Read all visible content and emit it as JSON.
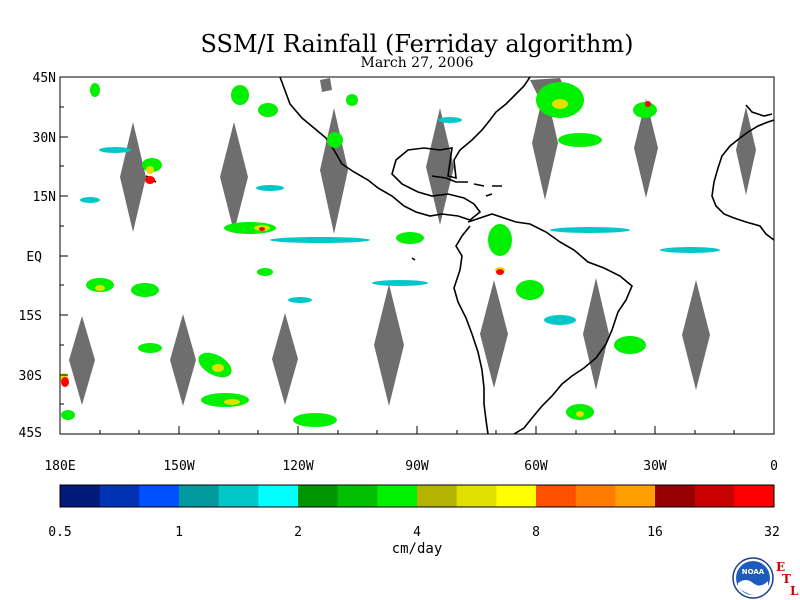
{
  "title": "SSM/I Rainfall (Ferriday algorithm)",
  "subtitle": "March 27, 2006",
  "lat_labels": [
    "45N",
    "30N",
    "15N",
    "EQ",
    "15S",
    "30S",
    "45S"
  ],
  "lon_labels": [
    "180E",
    "150W",
    "120W",
    "90W",
    "60W",
    "30W",
    "0"
  ],
  "colorbar": {
    "colors": [
      "#001a7a",
      "#0033b3",
      "#0050ff",
      "#00999e",
      "#00c8c8",
      "#00ffff",
      "#009400",
      "#00c000",
      "#00f000",
      "#b4b400",
      "#e0e000",
      "#ffff00",
      "#ff5000",
      "#ff7c00",
      "#ffa000",
      "#960000",
      "#c80000",
      "#ff0000"
    ],
    "tick_labels": [
      "0.5",
      "1",
      "2",
      "4",
      "8",
      "16",
      "32"
    ],
    "units": "cm/day"
  },
  "logo": {
    "name": "noaa-logo",
    "text": "NOAA"
  },
  "corner_mark": [
    "E",
    "T",
    "L"
  ]
}
